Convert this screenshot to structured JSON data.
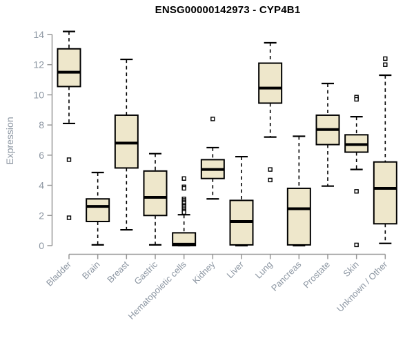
{
  "chart_data": {
    "type": "boxplot",
    "title": "ENSG00000142973 - CYP4B1",
    "ylabel": "Expression",
    "xlabel": "",
    "ylim": [
      0,
      14
    ],
    "yticks": [
      0,
      2,
      4,
      6,
      8,
      10,
      12,
      14
    ],
    "grid": false,
    "legend": "none",
    "box_fill_color": "#EEE7CB",
    "box_border_color": "#000000",
    "median_color": "#000000",
    "axis_line_color": "#979797",
    "axis_text_color": "#8C96A2",
    "title_color": "#000000",
    "categories": [
      "Bladder",
      "Brain",
      "Breast",
      "Gastric",
      "Hematopoietic cells",
      "Kidney",
      "Liver",
      "Lung",
      "Pancreas",
      "Prostate",
      "Skin",
      "Unknown / Other"
    ],
    "series": [
      {
        "category": "Bladder",
        "whisker_low": 8.1,
        "q1": 10.55,
        "median": 11.5,
        "q3": 13.05,
        "whisker_high": 14.2,
        "outliers": [
          5.7,
          1.85
        ]
      },
      {
        "category": "Brain",
        "whisker_low": 0.05,
        "q1": 1.6,
        "median": 2.6,
        "q3": 3.1,
        "whisker_high": 4.85,
        "outliers": []
      },
      {
        "category": "Breast",
        "whisker_low": 1.05,
        "q1": 5.15,
        "median": 6.8,
        "q3": 8.65,
        "whisker_high": 12.35,
        "outliers": []
      },
      {
        "category": "Gastric",
        "whisker_low": 0.05,
        "q1": 2.0,
        "median": 3.2,
        "q3": 4.95,
        "whisker_high": 6.1,
        "outliers": []
      },
      {
        "category": "Hematopoietic cells",
        "whisker_low": 0.0,
        "q1": 0.0,
        "median": 0.1,
        "q3": 0.85,
        "whisker_high": 2.05,
        "outliers": [
          4.45,
          3.9,
          3.8,
          3.1,
          3.0,
          2.9,
          2.8,
          2.7,
          2.6,
          2.5,
          2.4,
          2.3,
          2.2
        ]
      },
      {
        "category": "Kidney",
        "whisker_low": 3.1,
        "q1": 4.45,
        "median": 5.05,
        "q3": 5.7,
        "whisker_high": 6.5,
        "outliers": [
          8.4
        ]
      },
      {
        "category": "Liver",
        "whisker_low": 0.0,
        "q1": 0.05,
        "median": 1.6,
        "q3": 3.0,
        "whisker_high": 5.9,
        "outliers": []
      },
      {
        "category": "Lung",
        "whisker_low": 7.2,
        "q1": 9.45,
        "median": 10.45,
        "q3": 12.1,
        "whisker_high": 13.45,
        "outliers": [
          5.05,
          4.35
        ]
      },
      {
        "category": "Pancreas",
        "whisker_low": 0.0,
        "q1": 0.05,
        "median": 2.45,
        "q3": 3.8,
        "whisker_high": 7.25,
        "outliers": []
      },
      {
        "category": "Prostate",
        "whisker_low": 3.95,
        "q1": 6.7,
        "median": 7.7,
        "q3": 8.65,
        "whisker_high": 10.75,
        "outliers": []
      },
      {
        "category": "Skin",
        "whisker_low": 5.05,
        "q1": 6.2,
        "median": 6.7,
        "q3": 7.35,
        "whisker_high": 8.55,
        "outliers": [
          9.85,
          9.7,
          3.6,
          0.05
        ]
      },
      {
        "category": "Unknown / Other",
        "whisker_low": 0.15,
        "q1": 1.45,
        "median": 3.8,
        "q3": 5.55,
        "whisker_high": 11.3,
        "outliers": [
          12.4,
          12.0
        ]
      }
    ]
  }
}
